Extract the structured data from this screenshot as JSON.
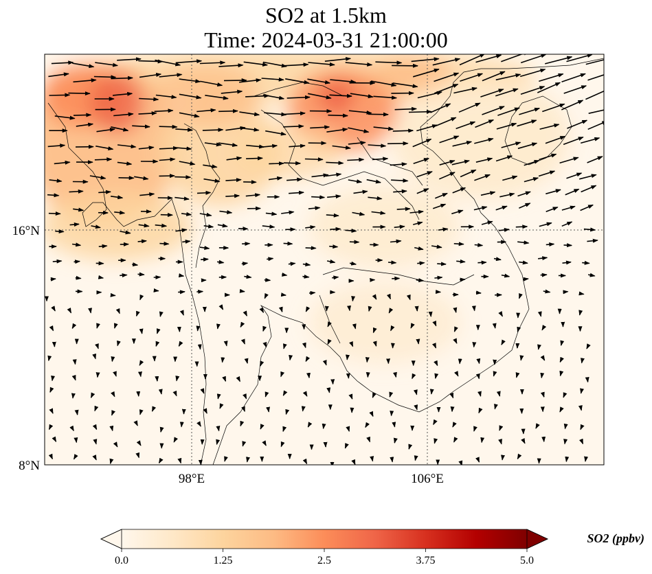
{
  "title": {
    "line1": "SO2 at 1.5km",
    "line2": "Time: 2024-03-31 21:00:00"
  },
  "map": {
    "lon_range": [
      93,
      112
    ],
    "lat_range": [
      8,
      22
    ],
    "lon_ticks": [
      {
        "value": 98,
        "label": "98°E"
      },
      {
        "value": 106,
        "label": "106°E"
      }
    ],
    "lat_ticks": [
      {
        "value": 16,
        "label": "16°N"
      },
      {
        "value": 8,
        "label": "8°N"
      }
    ],
    "gridlines": "dotted"
  },
  "colorbar": {
    "title": "SO2 (ppbv)",
    "min": 0.0,
    "max": 5.0,
    "extend": "both",
    "ticks": [
      {
        "value": 0.0,
        "label": "0.0"
      },
      {
        "value": 1.25,
        "label": "1.25"
      },
      {
        "value": 2.5,
        "label": "2.5"
      },
      {
        "value": 3.75,
        "label": "3.75"
      },
      {
        "value": 5.0,
        "label": "5.0"
      }
    ],
    "colormap": [
      "#fff7ec",
      "#fee8c8",
      "#fdd49e",
      "#fdbb84",
      "#fc8d59",
      "#ef6548",
      "#d7301f",
      "#b30000",
      "#7f0000"
    ]
  }
}
